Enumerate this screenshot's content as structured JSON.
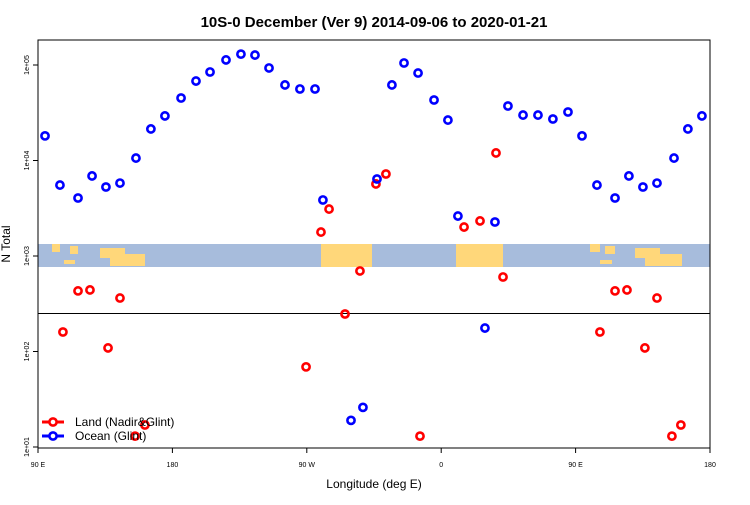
{
  "chart_data": {
    "type": "scatter",
    "title": "10S-0 December (Ver 9)   2014-09-06 to 2020-01-21",
    "xlabel": "Longitude (deg E)",
    "ylabel": "N Total",
    "xscale": "linear (longitude unwrapped, deg)",
    "yscale": "log",
    "xlim": [
      90,
      540
    ],
    "ylim_log10": [
      0.97,
      5.26
    ],
    "x_ticks": [
      {
        "value": 90,
        "label": "90 E"
      },
      {
        "value": 180,
        "label": "180"
      },
      {
        "value": 270,
        "label": "90 W"
      },
      {
        "value": 360,
        "label": "0"
      },
      {
        "value": 450,
        "label": "90 E"
      },
      {
        "value": 540,
        "label": "180"
      }
    ],
    "y_ticks": [
      {
        "value": 10,
        "label": "1e+01"
      },
      {
        "value": 100,
        "label": "1e+02"
      },
      {
        "value": 1000,
        "label": "1e+03"
      },
      {
        "value": 10000,
        "label": "1e+04"
      },
      {
        "value": 100000,
        "label": "1e+05"
      }
    ],
    "reference_line_value": 250,
    "map_band": {
      "center_value": 1000,
      "land_color": "#ffd77a",
      "ocean_color": "#a7bcdc"
    },
    "legend": {
      "placement": "bottom-left",
      "entries": [
        {
          "label": "Land (Nadir&Glint)",
          "color": "#ff0000"
        },
        {
          "label": "Ocean (Glint)",
          "color": "#0000ff"
        }
      ]
    },
    "series": [
      {
        "name": "Land (Nadir&Glint)",
        "color": "#ff0000",
        "points": [
          [
            106.7,
            160
          ],
          [
            116.8,
            431
          ],
          [
            124.8,
            441
          ],
          [
            136.9,
            109
          ],
          [
            144.9,
            363
          ],
          [
            155.0,
            13
          ],
          [
            161.6,
            17
          ],
          [
            269.5,
            69
          ],
          [
            279.5,
            1780
          ],
          [
            284.9,
            3100
          ],
          [
            295.6,
            247
          ],
          [
            305.6,
            697
          ],
          [
            316.3,
            5680
          ],
          [
            323.0,
            7220
          ],
          [
            345.8,
            13
          ],
          [
            375.3,
            2010
          ],
          [
            386.0,
            2330
          ],
          [
            396.7,
            12000
          ],
          [
            401.4,
            603
          ],
          [
            466.3,
            160
          ],
          [
            476.4,
            431
          ],
          [
            484.4,
            441
          ],
          [
            496.4,
            109
          ],
          [
            504.5,
            363
          ],
          [
            514.5,
            13
          ],
          [
            520.5,
            17
          ]
        ]
      },
      {
        "name": "Ocean (Glint)",
        "color": "#0000ff",
        "points": [
          [
            94.7,
            18100
          ],
          [
            104.7,
            5530
          ],
          [
            116.8,
            4050
          ],
          [
            126.2,
            6890
          ],
          [
            135.5,
            5280
          ],
          [
            144.9,
            5800
          ],
          [
            155.6,
            10600
          ],
          [
            165.6,
            21400
          ],
          [
            175.0,
            29300
          ],
          [
            185.8,
            45100
          ],
          [
            195.8,
            67900
          ],
          [
            205.2,
            84500
          ],
          [
            215.9,
            113000
          ],
          [
            225.9,
            130000
          ],
          [
            235.3,
            127000
          ],
          [
            244.7,
            93100
          ],
          [
            255.4,
            61800
          ],
          [
            265.4,
            56100
          ],
          [
            275.5,
            56100
          ],
          [
            280.8,
            3860
          ],
          [
            299.6,
            19
          ],
          [
            307.6,
            26
          ],
          [
            317.0,
            6400
          ],
          [
            327.0,
            61800
          ],
          [
            335.1,
            105000
          ],
          [
            344.5,
            82400
          ],
          [
            355.2,
            43000
          ],
          [
            364.5,
            26500
          ],
          [
            371.2,
            2620
          ],
          [
            389.3,
            176
          ],
          [
            396.0,
            2270
          ],
          [
            404.7,
            37200
          ],
          [
            414.8,
            29900
          ],
          [
            424.8,
            29900
          ],
          [
            434.8,
            27200
          ],
          [
            444.9,
            32200
          ],
          [
            454.3,
            18100
          ],
          [
            464.3,
            5530
          ],
          [
            476.4,
            4050
          ],
          [
            485.7,
            6890
          ],
          [
            495.1,
            5280
          ],
          [
            504.5,
            5800
          ],
          [
            515.9,
            10600
          ],
          [
            525.2,
            21400
          ],
          [
            534.6,
            29300
          ]
        ]
      }
    ]
  }
}
